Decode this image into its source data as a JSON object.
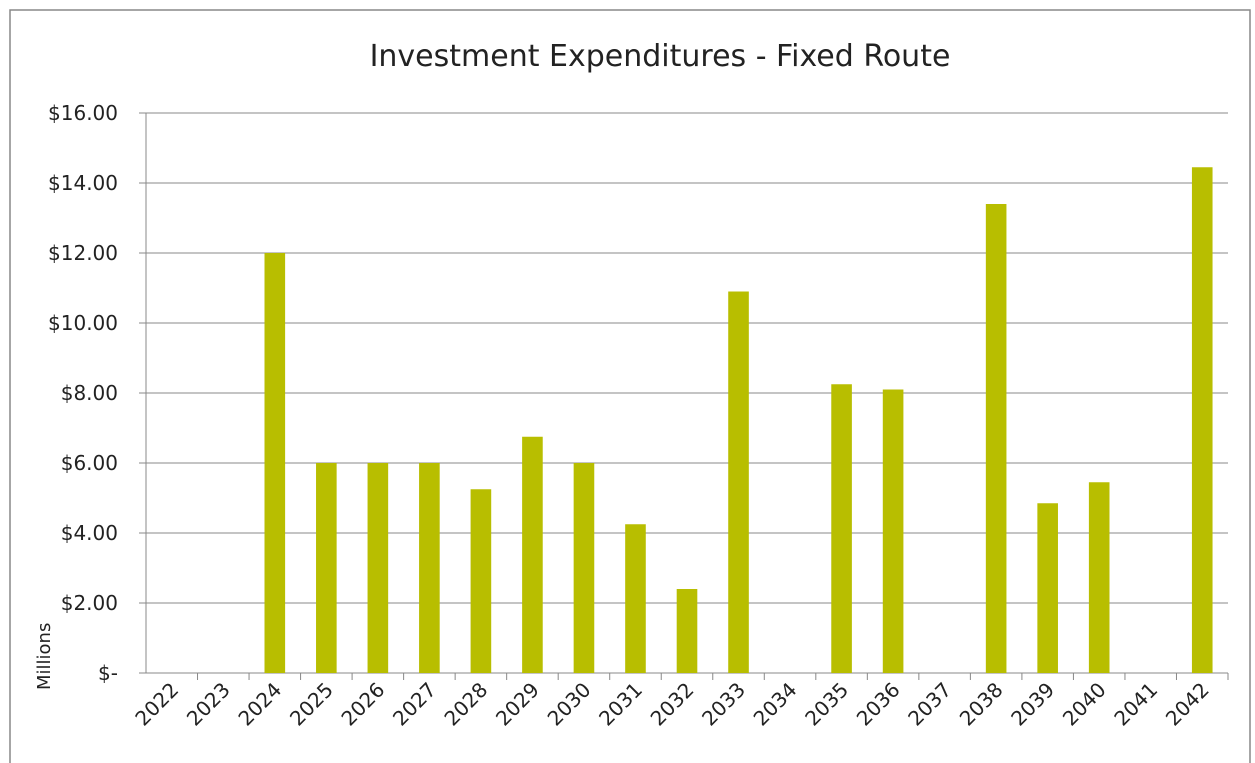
{
  "chart_data": {
    "type": "bar",
    "title": "Investment Expenditures - Fixed Route",
    "y_axis_label": "Millions",
    "categories": [
      "2022",
      "2023",
      "2024",
      "2025",
      "2026",
      "2027",
      "2028",
      "2029",
      "2030",
      "2031",
      "2032",
      "2033",
      "2034",
      "2035",
      "2036",
      "2037",
      "2038",
      "2039",
      "2040",
      "2041",
      "2042"
    ],
    "values": [
      0,
      0,
      12.0,
      6.0,
      6.0,
      6.0,
      5.25,
      6.75,
      6.0,
      4.25,
      2.4,
      10.9,
      0,
      8.25,
      8.1,
      0,
      13.4,
      4.85,
      5.45,
      0,
      14.45
    ],
    "color": "#b8be00",
    "ylim": [
      0,
      16
    ],
    "yticks": [
      {
        "value": 0,
        "label": "$-"
      },
      {
        "value": 2,
        "label": "$2.00"
      },
      {
        "value": 4,
        "label": "$4.00"
      },
      {
        "value": 6,
        "label": "$6.00"
      },
      {
        "value": 8,
        "label": "$8.00"
      },
      {
        "value": 10,
        "label": "$10.00"
      },
      {
        "value": 12,
        "label": "$12.00"
      },
      {
        "value": 14,
        "label": "$14.00"
      },
      {
        "value": 16,
        "label": "$16.00"
      }
    ],
    "grid": true
  }
}
